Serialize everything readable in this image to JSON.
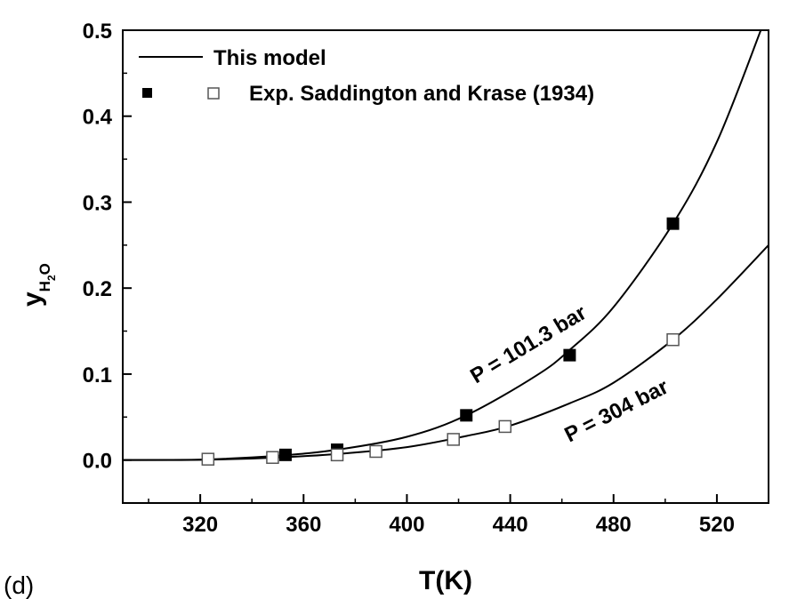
{
  "chart_data": {
    "type": "line",
    "panel_label": "(d)",
    "xlabel": "T(K)",
    "ylabel": {
      "base": "y",
      "sub1": "H",
      "sub2": "2",
      "sub3": "O"
    },
    "xlim": [
      290,
      540
    ],
    "ylim": [
      -0.05,
      0.5
    ],
    "xticks": [
      320,
      360,
      400,
      440,
      480,
      520
    ],
    "yticks": [
      0.0,
      0.1,
      0.2,
      0.3,
      0.4,
      0.5
    ],
    "ytick_labels": [
      "0.0",
      "0.1",
      "0.2",
      "0.3",
      "0.4",
      "0.5"
    ],
    "legend": {
      "placement": "top-left",
      "model_label": "This model",
      "exp_label": "Exp. Saddington and Krase (1934)"
    },
    "curve_labels": [
      "P = 101.3 bar",
      "P = 304 bar"
    ],
    "model_curves": [
      {
        "label_index": 0,
        "x": [
          290,
          320,
          350,
          373,
          400,
          423,
          450,
          463,
          480,
          503,
          520,
          537
        ],
        "y": [
          0.0,
          0.0005,
          0.005,
          0.012,
          0.027,
          0.052,
          0.098,
          0.128,
          0.178,
          0.275,
          0.37,
          0.5
        ]
      },
      {
        "label_index": 1,
        "x": [
          290,
          323,
          350,
          373,
          400,
          423,
          440,
          463,
          480,
          503,
          520,
          540
        ],
        "y": [
          0.0,
          0.0005,
          0.003,
          0.007,
          0.015,
          0.028,
          0.04,
          0.066,
          0.09,
          0.14,
          0.187,
          0.25
        ]
      }
    ],
    "experimental": [
      {
        "marker": "filled-square",
        "x": [
          353,
          373,
          423,
          463,
          503
        ],
        "y": [
          0.006,
          0.012,
          0.052,
          0.122,
          0.275
        ]
      },
      {
        "marker": "open-square",
        "x": [
          323,
          348,
          373,
          388,
          418,
          438,
          503
        ],
        "y": [
          0.001,
          0.003,
          0.006,
          0.01,
          0.024,
          0.039,
          0.14
        ]
      }
    ],
    "grid": false
  }
}
